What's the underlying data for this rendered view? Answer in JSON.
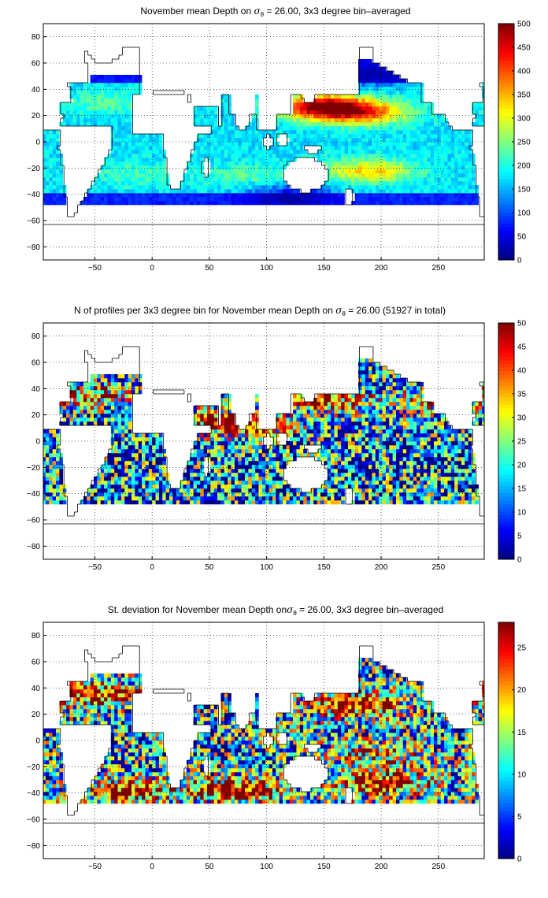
{
  "chart_data": [
    {
      "type": "heatmap",
      "title_prefix": "November mean Depth on ",
      "title_suffix": " = 26.00, 3x3 degree bin–averaged",
      "xlim": [
        -95,
        290
      ],
      "ylim": [
        -90,
        90
      ],
      "x_ticks": [
        -50,
        0,
        50,
        100,
        150,
        200,
        250
      ],
      "y_ticks": [
        -80,
        -60,
        -40,
        -20,
        0,
        20,
        40,
        60,
        80
      ],
      "grid": true,
      "colorbar": {
        "range": [
          0,
          500
        ],
        "ticks": [
          0,
          50,
          100,
          150,
          200,
          250,
          300,
          350,
          400,
          450,
          500
        ],
        "colormap": "jet"
      },
      "field": {
        "ocean_base_value": 175,
        "features": [
          {
            "region": "North Pacific subtropical gyre",
            "lon": 148,
            "lat": 27,
            "value": 490
          },
          {
            "region": "North Pacific band",
            "lon": 185,
            "lat": 22,
            "value": 370
          },
          {
            "region": "South Pacific gyre",
            "lon": 190,
            "lat": -22,
            "value": 330
          },
          {
            "region": "South Indian",
            "lon": 85,
            "lat": -25,
            "value": 230
          },
          {
            "region": "North Atlantic",
            "lon": -40,
            "lat": 30,
            "value": 230
          },
          {
            "region": "South Atlantic",
            "lon": -15,
            "lat": -25,
            "value": 220
          },
          {
            "region": "Southern Ocean edge",
            "lon": 120,
            "lat": -42,
            "value": 40
          },
          {
            "region": "North Pacific subpolar",
            "lon": 190,
            "lat": 52,
            "value": 50
          }
        ]
      }
    },
    {
      "type": "heatmap",
      "title_prefix": "N of profiles per 3x3 degree bin for November mean Depth on ",
      "title_suffix": " = 26.00 (51927 in total)",
      "xlim": [
        -95,
        290
      ],
      "ylim": [
        -90,
        90
      ],
      "x_ticks": [
        -50,
        0,
        50,
        100,
        150,
        200,
        250
      ],
      "y_ticks": [
        -80,
        -60,
        -40,
        -20,
        0,
        20,
        40,
        60,
        80
      ],
      "grid": true,
      "colorbar": {
        "range": [
          0,
          50
        ],
        "ticks": [
          0,
          5,
          10,
          15,
          20,
          25,
          30,
          35,
          40,
          45,
          50
        ],
        "colormap": "jet"
      },
      "field": {
        "ocean_base_value": 15,
        "features": [
          {
            "region": "Kuroshio",
            "lon": 145,
            "lat": 32,
            "value": 50
          },
          {
            "region": "Arabian Sea",
            "lon": 62,
            "lat": 15,
            "value": 42
          },
          {
            "region": "Gulf Stream",
            "lon": -55,
            "lat": 35,
            "value": 38
          },
          {
            "region": "California Current",
            "lon": 235,
            "lat": 30,
            "value": 32
          },
          {
            "region": "Bay of Bengal",
            "lon": 88,
            "lat": 12,
            "value": 35
          }
        ]
      }
    },
    {
      "type": "heatmap",
      "title_prefix": "St. deviation for November mean Depth on",
      "title_suffix": " = 26.00, 3x3 degree bin–averaged",
      "xlim": [
        -95,
        290
      ],
      "ylim": [
        -90,
        90
      ],
      "x_ticks": [
        -50,
        0,
        50,
        100,
        150,
        200,
        250
      ],
      "y_ticks": [
        -80,
        -60,
        -40,
        -20,
        0,
        20,
        40,
        60,
        80
      ],
      "grid": true,
      "colorbar": {
        "range": [
          0,
          28
        ],
        "ticks": [
          0,
          5,
          10,
          15,
          20,
          25
        ],
        "colormap": "jet"
      },
      "field": {
        "ocean_base_value": 10,
        "features": [
          {
            "region": "North Pacific band",
            "lon": 175,
            "lat": 28,
            "value": 30
          },
          {
            "region": "South Pacific band",
            "lon": 200,
            "lat": -32,
            "value": 30
          },
          {
            "region": "South Indian band",
            "lon": 75,
            "lat": -38,
            "value": 30
          },
          {
            "region": "South Atlantic band",
            "lon": -20,
            "lat": -38,
            "value": 28
          },
          {
            "region": "North Atlantic",
            "lon": -50,
            "lat": 35,
            "value": 28
          },
          {
            "region": "Equatorial Pacific",
            "lon": 200,
            "lat": -10,
            "value": 22
          },
          {
            "region": "North Pacific subpolar",
            "lon": 200,
            "lat": 50,
            "value": 9
          }
        ]
      }
    }
  ],
  "symbol": {
    "sigma": "σ",
    "theta": "θ"
  },
  "colors": {
    "missing": "#ffffff",
    "coastline": "#000000",
    "grid": "#000000"
  }
}
